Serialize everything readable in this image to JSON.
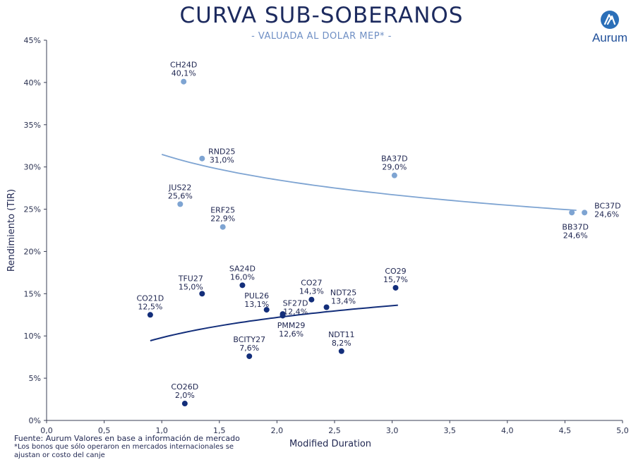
{
  "header": {
    "title": "CURVA SUB-SOBERANOS",
    "subtitle": "- VALUADA AL DOLAR MEP* -",
    "logo_text": "Aurum"
  },
  "footnote": {
    "source": "Fuente: Aurum Valores en base a información de mercado",
    "note_line1": "*Los bonos que sólo operaron en mercados internacionales se",
    "note_line2": "ajustan or costo del canje"
  },
  "chart_data": {
    "type": "scatter",
    "title": "CURVA SUB-SOBERANOS",
    "subtitle": "- VALUADA AL DOLAR MEP* -",
    "xlabel": "Modified Duration",
    "ylabel": "Rendimiento (TIR)",
    "xlim": [
      0,
      5
    ],
    "ylim": [
      0,
      45
    ],
    "x_ticks": [
      "0,0",
      "0,5",
      "1,0",
      "1,5",
      "2,0",
      "2,5",
      "3,0",
      "3,5",
      "4,0",
      "4,5",
      "5,0"
    ],
    "y_ticks": [
      "0%",
      "5%",
      "10%",
      "15%",
      "20%",
      "25%",
      "30%",
      "35%",
      "40%",
      "45%"
    ],
    "grid": false,
    "colors": {
      "international": "#7ea4d2",
      "local": "#132e7a"
    },
    "series": [
      {
        "group": "international",
        "points": [
          {
            "name": "CH24D",
            "x": 1.19,
            "y": 40.1,
            "label": "40,1%"
          },
          {
            "name": "RND25",
            "x": 1.35,
            "y": 31.0,
            "label": "31,0%"
          },
          {
            "name": "JUS22",
            "x": 1.16,
            "y": 25.6,
            "label": "25,6%"
          },
          {
            "name": "ERF25",
            "x": 1.53,
            "y": 22.9,
            "label": "22,9%"
          },
          {
            "name": "BA37D",
            "x": 3.02,
            "y": 29.0,
            "label": "29,0%"
          },
          {
            "name": "BB37D",
            "x": 4.56,
            "y": 24.6,
            "label": "24,6%"
          },
          {
            "name": "BC37D",
            "x": 4.67,
            "y": 24.6,
            "label": "24,6%"
          }
        ],
        "trend": {
          "x_from": 1.0,
          "x_to": 4.6
        }
      },
      {
        "group": "local",
        "points": [
          {
            "name": "CO21D",
            "x": 0.9,
            "y": 12.5,
            "label": "12,5%"
          },
          {
            "name": "TFU27",
            "x": 1.35,
            "y": 15.0,
            "label": "15,0%"
          },
          {
            "name": "SA24D",
            "x": 1.7,
            "y": 16.0,
            "label": "16,0%"
          },
          {
            "name": "PUL26",
            "x": 1.91,
            "y": 13.1,
            "label": "13,1%"
          },
          {
            "name": "SF27D",
            "x": 2.05,
            "y": 12.4,
            "label": "12,4%"
          },
          {
            "name": "PMM29",
            "x": 2.05,
            "y": 12.6,
            "label": "12,6%"
          },
          {
            "name": "CO27",
            "x": 2.3,
            "y": 14.3,
            "label": "14,3%"
          },
          {
            "name": "NDT25",
            "x": 2.43,
            "y": 13.4,
            "label": "13,4%"
          },
          {
            "name": "CO29",
            "x": 3.03,
            "y": 15.7,
            "label": "15,7%"
          },
          {
            "name": "BCITY27",
            "x": 1.76,
            "y": 7.6,
            "label": "7,6%"
          },
          {
            "name": "NDT11",
            "x": 2.56,
            "y": 8.2,
            "label": "8,2%"
          },
          {
            "name": "CO26D",
            "x": 1.2,
            "y": 2.0,
            "label": "2,0%"
          }
        ],
        "trend": {
          "x_from": 0.9,
          "x_to": 3.05
        }
      }
    ]
  }
}
